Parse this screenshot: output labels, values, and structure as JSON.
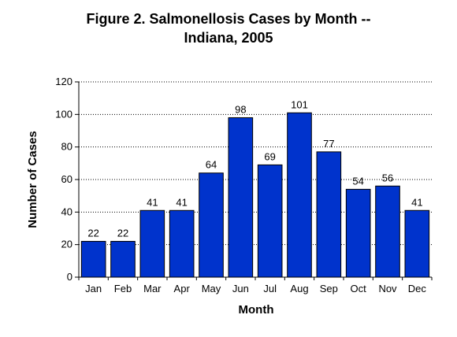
{
  "chart_data": {
    "type": "bar",
    "title_lines": [
      "Figure 2.  Salmonellosis Cases by Month --",
      "Indiana, 2005"
    ],
    "xlabel": "Month",
    "ylabel": "Number of Cases",
    "categories": [
      "Jan",
      "Feb",
      "Mar",
      "Apr",
      "May",
      "Jun",
      "Jul",
      "Aug",
      "Sep",
      "Oct",
      "Nov",
      "Dec"
    ],
    "values": [
      22,
      22,
      41,
      41,
      64,
      98,
      69,
      101,
      77,
      54,
      56,
      41
    ],
    "ylim": [
      0,
      120
    ],
    "yticks": [
      0,
      20,
      40,
      60,
      80,
      100,
      120
    ],
    "grid": true,
    "bar_color": "#0033CC",
    "bar_edge_color": "#000000"
  }
}
